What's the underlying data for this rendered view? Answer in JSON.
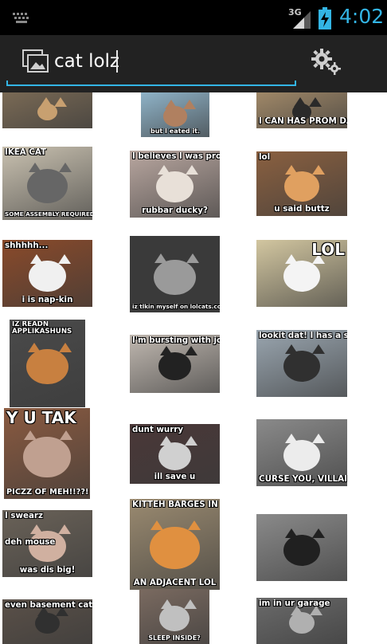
{
  "status_bar": {
    "network": "3G",
    "time": "4:02",
    "accent": "#33b5e5"
  },
  "search": {
    "query": "cat lolz"
  },
  "results": [
    {
      "top": "",
      "bottom": "",
      "bg": "#7a6a55",
      "cat": "#c8a070"
    },
    {
      "top": "",
      "bottom": "but I eated it.",
      "bg": "#8fb3c8",
      "cat": "#b08060"
    },
    {
      "top": "",
      "bottom": "I CAN HAS PROM DATE?",
      "bg": "#a08868",
      "cat": "#2a2a2a"
    },
    {
      "top": "IKEA CAT",
      "bottom": "SOME ASSEMBLY REQUIRED",
      "bg": "#c9c1b0",
      "cat": "#666666"
    },
    {
      "top": "I believes I was promist",
      "bottom": "rubbar ducky?",
      "bg": "#b9a7a0",
      "cat": "#e8e0d8"
    },
    {
      "top": "lol",
      "bottom": "u said buttz",
      "bg": "#8a6040",
      "cat": "#e0a060"
    },
    {
      "top": "shhhhh...",
      "bottom": "i is nap-kin",
      "bg": "#8a4a2a",
      "cat": "#f0f0f0"
    },
    {
      "top": "",
      "bottom": "iz tlkin myself on lolcats.com",
      "bg": "#3a3a3a",
      "cat": "#9a9a9a"
    },
    {
      "top": "LOL",
      "bottom": "",
      "bg": "#d2c6a0",
      "cat": "#f4f4f4"
    },
    {
      "top": "IZ READN APPLIKASHUNS",
      "bottom": "",
      "bg": "#4a4a4a",
      "cat": "#c88040"
    },
    {
      "top": "I'm bursting with joy.",
      "bottom": "",
      "bg": "#c0b8b0",
      "cat": "#222222"
    },
    {
      "top": "lookit dat! I has a sok!",
      "bottom": "",
      "bg": "#9aa6b0",
      "cat": "#303030"
    },
    {
      "top": "Y U TAK",
      "bottom": "PICZZ OF MEH!!??!",
      "bg": "#8a5a40",
      "cat": "#c0a090"
    },
    {
      "top": "dunt wurry",
      "bottom": "ill save u",
      "bg": "#4a3838",
      "cat": "#d0d0d0"
    },
    {
      "top": "",
      "bottom": "CURSE YOU, VILLAIN!",
      "bg": "#8a8a8a",
      "cat": "#ececec"
    },
    {
      "top": "I swearz",
      "bottom": "was dis big!",
      "mid": "deh mouse",
      "bg": "#6a6258",
      "cat": "#d0b0a0"
    },
    {
      "top": "KITTEH BARGES IN FROM",
      "bottom": "AN ADJACENT LOL",
      "bg": "#9a8a70",
      "cat": "#e09040"
    },
    {
      "top": "",
      "bottom": "",
      "bg": "#8a8a8a",
      "cat": "#202020"
    },
    {
      "top": "even basement cat",
      "bottom": "",
      "bg": "#5a5048",
      "cat": "#303030"
    },
    {
      "top": "",
      "bottom": "SLEEP INSIDE?",
      "bg": "#7a6a60",
      "cat": "#c0c0c0"
    },
    {
      "top": "im in ur garage",
      "bottom": "",
      "bg": "#6a6a6a",
      "cat": "#b0b0b0"
    }
  ]
}
